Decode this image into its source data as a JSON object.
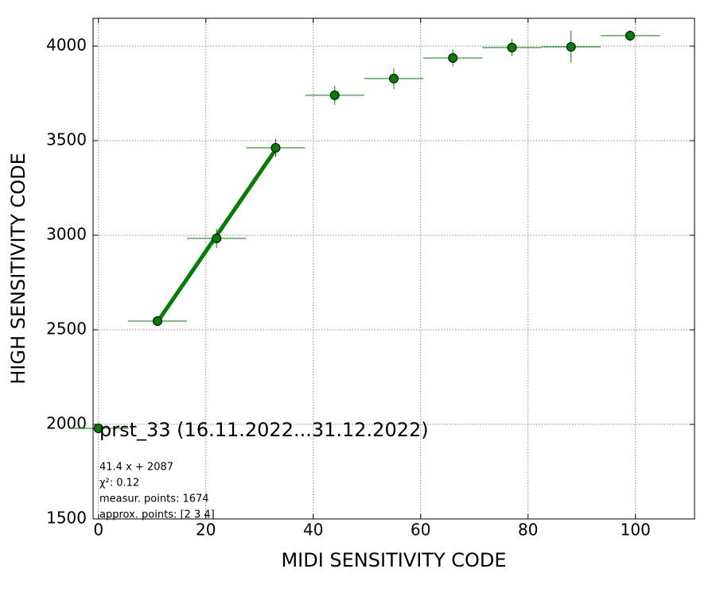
{
  "chart_data": {
    "type": "scatter",
    "title": "prst_33 (16.11.2022...31.12.2022)",
    "x_label": "MIDI SENSITIVITY CODE",
    "y_label": "HIGH SENSITIVITY CODE",
    "annotations": [
      "41.4 x + 2087",
      "χ²: 0.12",
      "measur. points: 1674",
      "approx. points: [2 3 4]"
    ],
    "xlim": [
      -1,
      111
    ],
    "ylim": [
      1500,
      4147
    ],
    "xticks": [
      0,
      20,
      40,
      60,
      80,
      100
    ],
    "yticks": [
      1500,
      2000,
      2500,
      3000,
      3500,
      4000
    ],
    "grid": true,
    "series": [
      {
        "color": "#008000",
        "x": [
          0,
          11,
          22,
          33,
          44,
          55,
          66,
          77,
          88,
          99
        ],
        "values": [
          1979,
          2546,
          2983,
          3462,
          3740,
          3828,
          3937,
          3992,
          3996,
          4055
        ],
        "xerr": [
          5.5,
          5.5,
          5.5,
          5.5,
          5.5,
          5.5,
          5.5,
          5.5,
          5.5,
          5.5
        ],
        "yerr": [
          10,
          15,
          50,
          48,
          50,
          55,
          45,
          45,
          84,
          30
        ]
      },
      {
        "color": "#008000",
        "type": "line",
        "x": [
          11,
          33
        ],
        "values": [
          2542,
          3453
        ]
      }
    ]
  }
}
